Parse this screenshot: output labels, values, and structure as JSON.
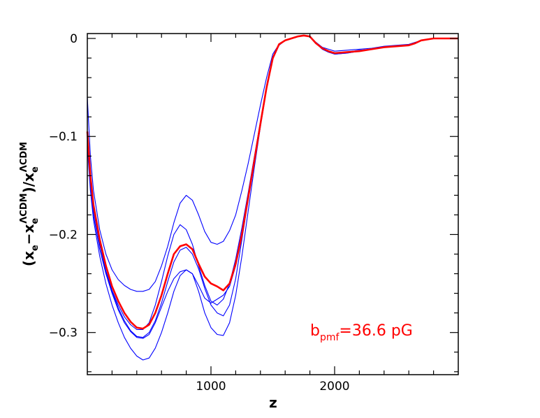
{
  "chart_data": {
    "type": "line",
    "xlabel": "z",
    "ylabel": {
      "base": "(x",
      "sub1": "e",
      "mid": "−x",
      "sub2": "e",
      "sup2": "ΛCDM",
      "mid2": ")/x",
      "sub3": "e",
      "sup3": "ΛCDM"
    },
    "xlim": [
      0,
      3000
    ],
    "ylim": [
      -0.343,
      0.005
    ],
    "x_ticks": [
      {
        "value": 1000,
        "label": "1000"
      },
      {
        "value": 2000,
        "label": "2000"
      }
    ],
    "y_ticks": [
      {
        "value": 0,
        "label": "0"
      },
      {
        "value": -0.1,
        "label": "−0.1"
      },
      {
        "value": -0.2,
        "label": "−0.2"
      },
      {
        "value": -0.3,
        "label": "−0.3"
      }
    ],
    "annotation": {
      "main": "b",
      "sub": "pmf",
      "rest": "=36.6  pG",
      "color": "#ff0000"
    },
    "colors": {
      "main": "#ff0000",
      "samples": "#0000ff",
      "axes": "#000000"
    },
    "series": [
      {
        "color": "#ff0000",
        "highlight": true,
        "x": [
          0,
          25,
          50,
          100,
          150,
          200,
          250,
          300,
          350,
          400,
          450,
          500,
          550,
          600,
          650,
          700,
          750,
          800,
          850,
          900,
          950,
          1000,
          1050,
          1100,
          1150,
          1200,
          1250,
          1300,
          1350,
          1400,
          1450,
          1500,
          1550,
          1600,
          1650,
          1700,
          1750,
          1800,
          1850,
          1900,
          1950,
          2000,
          2100,
          2200,
          2300,
          2400,
          2500,
          2600,
          2650,
          2700,
          2800,
          2900,
          3000
        ],
        "y": [
          -0.095,
          -0.14,
          -0.17,
          -0.205,
          -0.232,
          -0.253,
          -0.268,
          -0.28,
          -0.289,
          -0.295,
          -0.296,
          -0.292,
          -0.28,
          -0.262,
          -0.24,
          -0.22,
          -0.212,
          -0.21,
          -0.215,
          -0.23,
          -0.243,
          -0.25,
          -0.253,
          -0.257,
          -0.25,
          -0.23,
          -0.2,
          -0.163,
          -0.125,
          -0.087,
          -0.05,
          -0.02,
          -0.006,
          -0.002,
          0,
          0.002,
          0.003,
          0.002,
          -0.005,
          -0.01,
          -0.013,
          -0.015,
          -0.014,
          -0.013,
          -0.011,
          -0.009,
          -0.008,
          -0.007,
          -0.005,
          -0.002,
          0,
          0,
          0
        ]
      },
      {
        "color": "#0000ff",
        "x": [
          0,
          25,
          50,
          100,
          150,
          200,
          250,
          300,
          350,
          400,
          450,
          500,
          550,
          600,
          650,
          700,
          750,
          800,
          850,
          900,
          950,
          1000,
          1050,
          1100,
          1150,
          1200,
          1250,
          1300,
          1350,
          1400,
          1450,
          1500,
          1550,
          1600,
          1650,
          1700,
          1750,
          1800,
          1850,
          1900,
          1950,
          2000,
          2100,
          2200,
          2300,
          2400,
          2500,
          2600,
          2650,
          2700,
          2800,
          2900,
          3000
        ],
        "y": [
          -0.06,
          -0.12,
          -0.155,
          -0.195,
          -0.22,
          -0.236,
          -0.246,
          -0.252,
          -0.256,
          -0.258,
          -0.258,
          -0.256,
          -0.248,
          -0.232,
          -0.212,
          -0.188,
          -0.168,
          -0.16,
          -0.165,
          -0.18,
          -0.197,
          -0.208,
          -0.21,
          -0.207,
          -0.196,
          -0.18,
          -0.155,
          -0.128,
          -0.098,
          -0.068,
          -0.04,
          -0.016,
          -0.006,
          -0.002,
          0,
          0.002,
          0.003,
          0.002,
          -0.004,
          -0.009,
          -0.011,
          -0.013,
          -0.012,
          -0.011,
          -0.01,
          -0.008,
          -0.007,
          -0.006,
          -0.004,
          -0.002,
          0,
          0,
          0
        ]
      },
      {
        "color": "#0000ff",
        "x": [
          0,
          25,
          50,
          100,
          150,
          200,
          250,
          300,
          350,
          400,
          450,
          500,
          550,
          600,
          650,
          700,
          750,
          800,
          850,
          900,
          950,
          1000,
          1050,
          1100,
          1150,
          1200,
          1250,
          1300,
          1350,
          1400,
          1450,
          1500,
          1550,
          1600,
          1650,
          1700,
          1750,
          1800,
          1850,
          1900,
          1950,
          2000,
          2100,
          2200,
          2300,
          2400,
          2500,
          2600,
          2650,
          2700,
          2800,
          2900,
          3000
        ],
        "y": [
          -0.1,
          -0.145,
          -0.175,
          -0.21,
          -0.237,
          -0.257,
          -0.272,
          -0.284,
          -0.292,
          -0.297,
          -0.297,
          -0.29,
          -0.272,
          -0.248,
          -0.222,
          -0.2,
          -0.19,
          -0.195,
          -0.21,
          -0.232,
          -0.252,
          -0.268,
          -0.272,
          -0.266,
          -0.25,
          -0.225,
          -0.193,
          -0.158,
          -0.121,
          -0.085,
          -0.05,
          -0.021,
          -0.007,
          -0.002,
          0,
          0.002,
          0.003,
          0.002,
          -0.005,
          -0.01,
          -0.013,
          -0.015,
          -0.014,
          -0.013,
          -0.011,
          -0.009,
          -0.008,
          -0.007,
          -0.005,
          -0.002,
          0,
          0,
          0
        ]
      },
      {
        "color": "#0000ff",
        "x": [
          0,
          25,
          50,
          100,
          150,
          200,
          250,
          300,
          350,
          400,
          450,
          500,
          550,
          600,
          650,
          700,
          750,
          800,
          850,
          900,
          950,
          1000,
          1050,
          1100,
          1150,
          1200,
          1250,
          1300,
          1350,
          1400,
          1450,
          1500,
          1550,
          1600,
          1650,
          1700,
          1750,
          1800,
          1850,
          1900,
          1950,
          2000,
          2100,
          2200,
          2300,
          2400,
          2500,
          2600,
          2650,
          2700,
          2800,
          2900,
          3000
        ],
        "y": [
          -0.095,
          -0.14,
          -0.172,
          -0.21,
          -0.238,
          -0.258,
          -0.275,
          -0.288,
          -0.298,
          -0.304,
          -0.305,
          -0.3,
          -0.288,
          -0.27,
          -0.248,
          -0.228,
          -0.216,
          -0.213,
          -0.22,
          -0.235,
          -0.255,
          -0.272,
          -0.28,
          -0.283,
          -0.272,
          -0.245,
          -0.205,
          -0.165,
          -0.125,
          -0.087,
          -0.05,
          -0.02,
          -0.006,
          -0.002,
          0,
          0.002,
          0.003,
          0.002,
          -0.005,
          -0.011,
          -0.014,
          -0.016,
          -0.015,
          -0.013,
          -0.011,
          -0.009,
          -0.008,
          -0.007,
          -0.005,
          -0.002,
          0,
          0,
          0
        ]
      },
      {
        "color": "#0000ff",
        "x": [
          0,
          25,
          50,
          100,
          150,
          200,
          250,
          300,
          350,
          400,
          450,
          500,
          550,
          600,
          650,
          700,
          750,
          800,
          850,
          900,
          950,
          1000,
          1050,
          1100,
          1150,
          1200,
          1250,
          1300,
          1350,
          1400,
          1450,
          1500,
          1550,
          1600,
          1650,
          1700,
          1750,
          1800,
          1850,
          1900,
          1950,
          2000,
          2100,
          2200,
          2300,
          2400,
          2500,
          2600,
          2650,
          2700,
          2800,
          2900,
          3000
        ],
        "y": [
          -0.105,
          -0.15,
          -0.18,
          -0.215,
          -0.24,
          -0.26,
          -0.277,
          -0.29,
          -0.299,
          -0.305,
          -0.306,
          -0.302,
          -0.29,
          -0.274,
          -0.258,
          -0.245,
          -0.238,
          -0.236,
          -0.24,
          -0.252,
          -0.265,
          -0.27,
          -0.266,
          -0.262,
          -0.253,
          -0.232,
          -0.198,
          -0.16,
          -0.122,
          -0.085,
          -0.049,
          -0.02,
          -0.006,
          -0.002,
          0,
          0.002,
          0.003,
          0.002,
          -0.005,
          -0.01,
          -0.013,
          -0.015,
          -0.014,
          -0.012,
          -0.011,
          -0.009,
          -0.008,
          -0.007,
          -0.005,
          -0.002,
          0,
          0,
          0
        ]
      },
      {
        "color": "#0000ff",
        "x": [
          0,
          25,
          50,
          100,
          150,
          200,
          250,
          300,
          350,
          400,
          450,
          500,
          550,
          600,
          650,
          700,
          750,
          800,
          850,
          900,
          950,
          1000,
          1050,
          1100,
          1150,
          1200,
          1250,
          1300,
          1350,
          1400,
          1450,
          1500,
          1550,
          1600,
          1650,
          1700,
          1750,
          1800,
          1850,
          1900,
          1950,
          2000,
          2100,
          2200,
          2300,
          2400,
          2500,
          2600,
          2650,
          2700,
          2800,
          2900,
          3000
        ],
        "y": [
          -0.11,
          -0.155,
          -0.185,
          -0.222,
          -0.25,
          -0.272,
          -0.29,
          -0.305,
          -0.316,
          -0.324,
          -0.328,
          -0.326,
          -0.316,
          -0.3,
          -0.28,
          -0.258,
          -0.242,
          -0.236,
          -0.24,
          -0.258,
          -0.28,
          -0.295,
          -0.302,
          -0.303,
          -0.29,
          -0.262,
          -0.222,
          -0.177,
          -0.132,
          -0.09,
          -0.052,
          -0.021,
          -0.007,
          -0.002,
          0,
          0.002,
          0.003,
          0.002,
          -0.005,
          -0.011,
          -0.014,
          -0.016,
          -0.015,
          -0.013,
          -0.011,
          -0.009,
          -0.008,
          -0.007,
          -0.005,
          -0.002,
          0,
          0,
          0
        ]
      }
    ]
  }
}
